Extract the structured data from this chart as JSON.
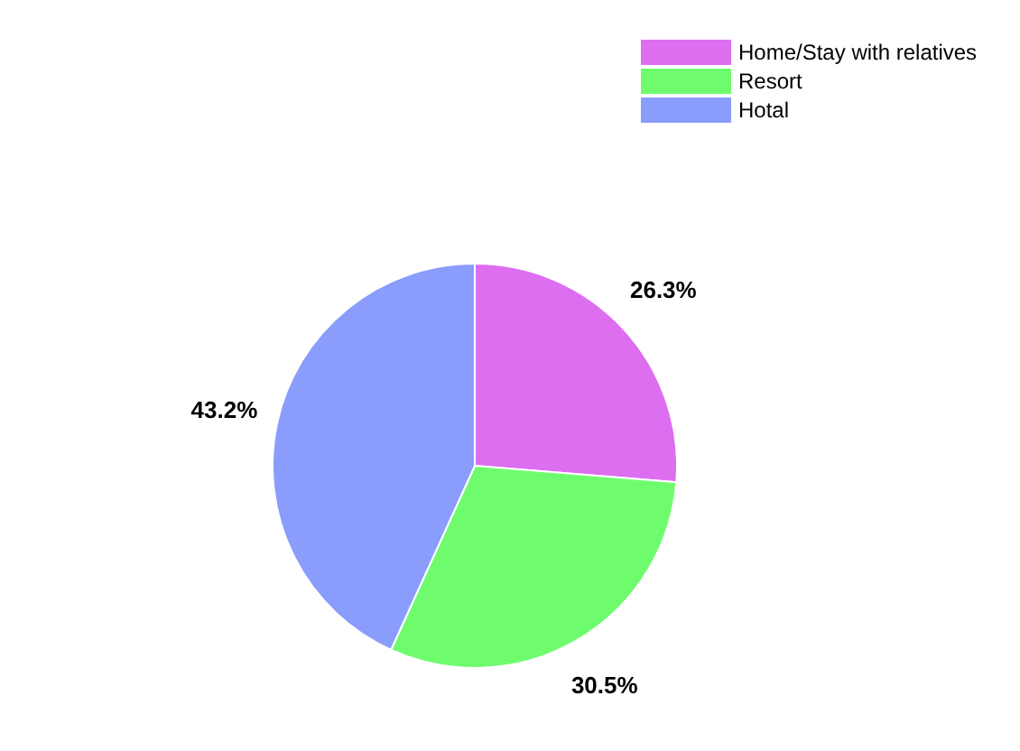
{
  "chart_data": {
    "type": "pie",
    "categories": [
      "Home/Stay with relatives",
      "Resort",
      "Hotal"
    ],
    "values": [
      26.3,
      30.5,
      43.2
    ],
    "colors": [
      "#dd6ef0",
      "#6efc6e",
      "#8a9cfc"
    ],
    "value_labels": [
      "26.3%",
      "30.5%",
      "43.2%"
    ],
    "legend": "top right"
  }
}
